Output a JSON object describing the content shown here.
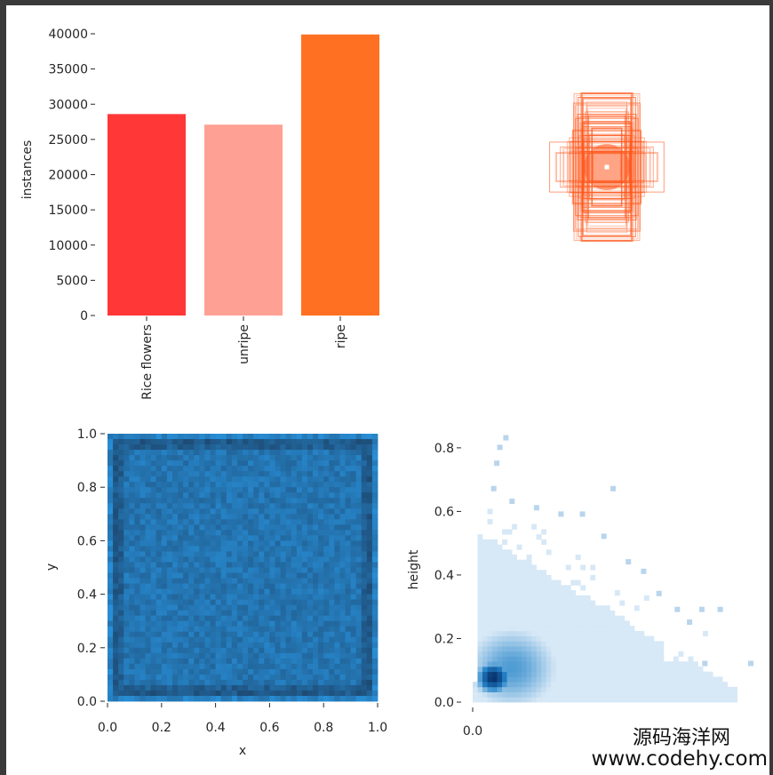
{
  "colors": {
    "bars": [
      "#ff3737",
      "#ffa094",
      "#ff7022"
    ],
    "box_stroke": "#ff5a1f",
    "heat_low": "#1d4870",
    "heat_high": "#2a99e6",
    "kde": "#1f77b4"
  },
  "chart_data": [
    {
      "type": "bar",
      "title": "",
      "xlabel": "",
      "ylabel": "instances",
      "categories": [
        "Rice flowers",
        "unripe",
        "ripe"
      ],
      "values": [
        28600,
        27100,
        39900
      ],
      "ylim": [
        0,
        40000
      ],
      "yticks": [
        0,
        5000,
        10000,
        15000,
        20000,
        25000,
        30000,
        35000,
        40000
      ],
      "ytick_labels": [
        "0",
        "5000",
        "10000",
        "15000",
        "20000",
        "25000",
        "30000",
        "35000",
        "40000"
      ],
      "grid": false
    },
    {
      "type": "overlay_boxes",
      "title": "",
      "description_center": [
        0.5,
        0.5
      ],
      "box_count_shown": 60,
      "grid": false
    },
    {
      "type": "heatmap",
      "title": "",
      "xlabel": "x",
      "ylabel": "y",
      "xlim": [
        0,
        1
      ],
      "ylim": [
        0,
        1
      ],
      "xticks": [
        0.0,
        0.2,
        0.4,
        0.6,
        0.8,
        1.0
      ],
      "xtick_labels": [
        "0.0",
        "0.2",
        "0.4",
        "0.6",
        "0.8",
        "1.0"
      ],
      "yticks": [
        0.0,
        0.2,
        0.4,
        0.6,
        0.8,
        1.0
      ],
      "ytick_labels": [
        "0.0",
        "0.2",
        "0.4",
        "0.6",
        "0.8",
        "1.0"
      ],
      "bins": 50,
      "grid": false
    },
    {
      "type": "heatmap",
      "title": "",
      "xlabel": "",
      "ylabel": "height",
      "xlim": [
        0,
        0.9
      ],
      "ylim": [
        0,
        0.85
      ],
      "xticks": [
        0.0
      ],
      "xtick_labels": [
        "0.0"
      ],
      "yticks": [
        0.0,
        0.2,
        0.4,
        0.6,
        0.8
      ],
      "ytick_labels": [
        "0.0",
        "0.2",
        "0.4",
        "0.6",
        "0.8"
      ],
      "grid": false
    }
  ],
  "watermark": {
    "line1": "源码海洋网",
    "line2": "www.codehy.com"
  }
}
